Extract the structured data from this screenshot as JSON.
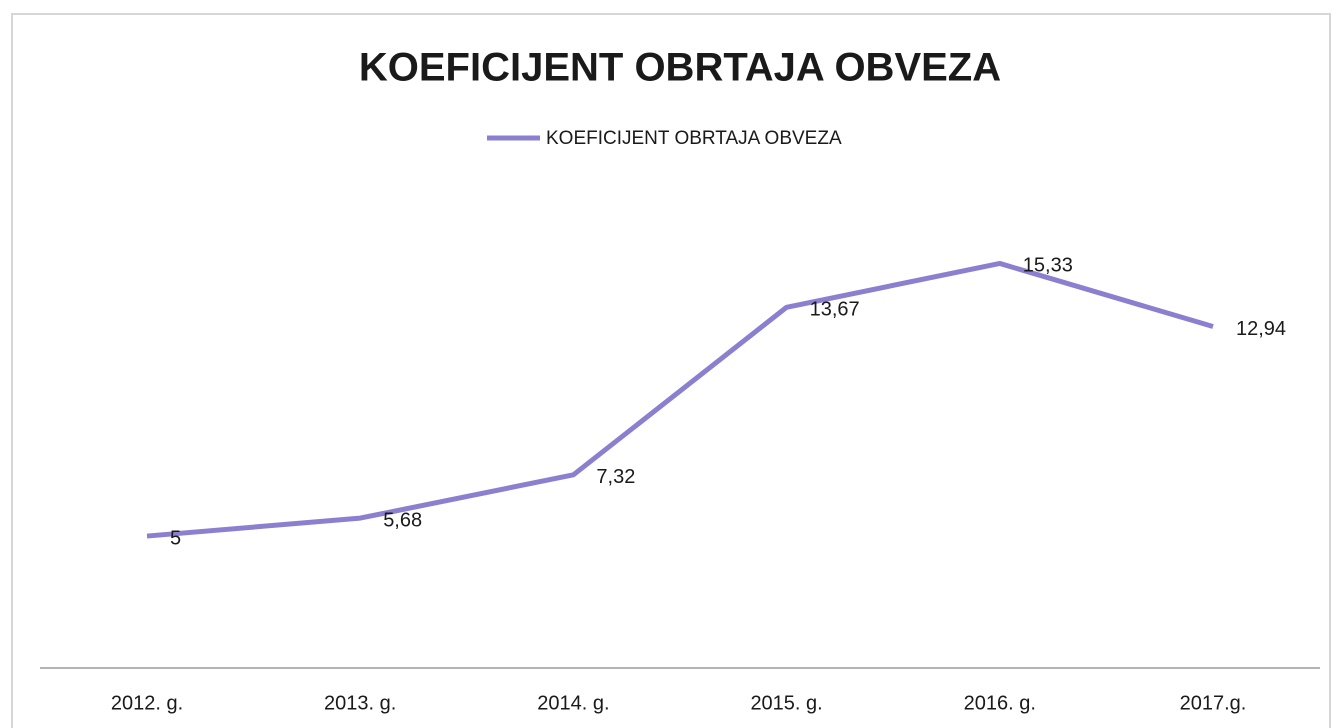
{
  "chart_data": {
    "type": "line",
    "title": "KOEFICIJENT OBRTAJA OBVEZA",
    "categories": [
      "2012. g.",
      "2013. g.",
      "2014. g.",
      "2015. g.",
      "2016. g.",
      "2017.g."
    ],
    "series": [
      {
        "name": "KOEFICIJENT OBRTAJA OBVEZA",
        "color": "#8b80cf",
        "values": [
          5,
          5.68,
          7.32,
          13.67,
          15.33,
          12.94
        ],
        "value_labels": [
          "5",
          "5,68",
          "7,32",
          "13,67",
          "15,33",
          "12,94"
        ]
      }
    ],
    "ylim": [
      0,
      18
    ]
  }
}
